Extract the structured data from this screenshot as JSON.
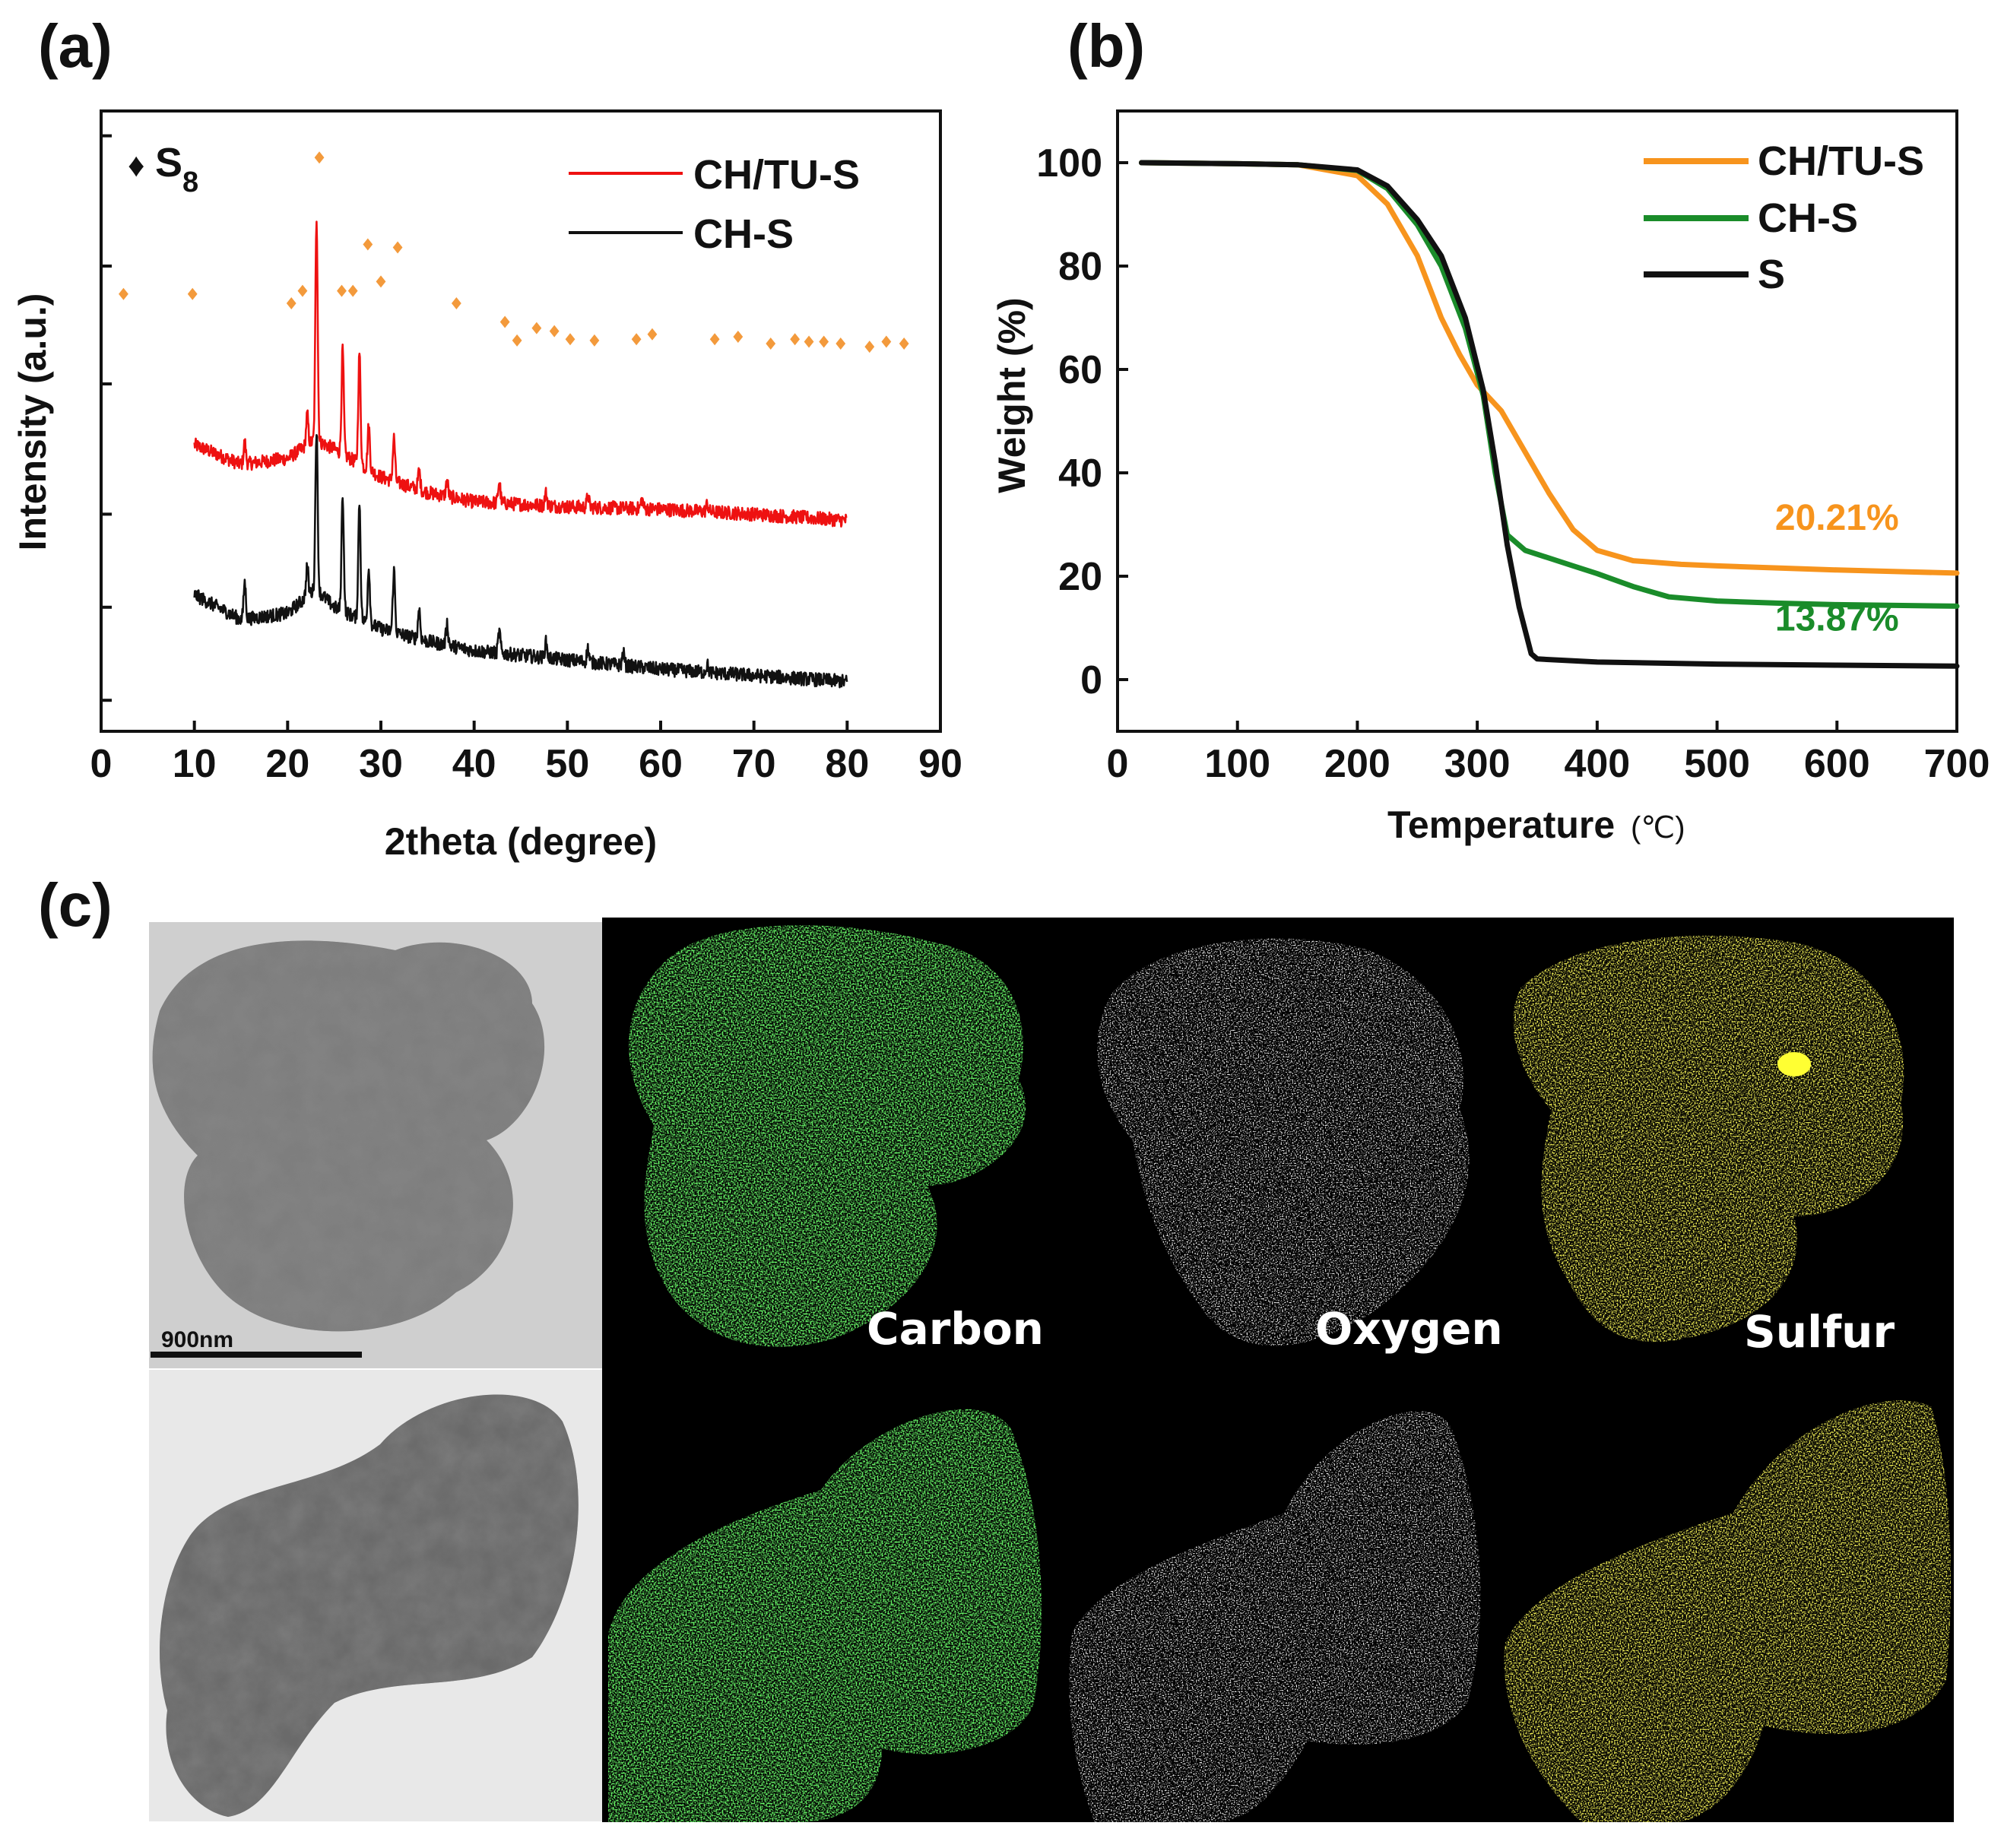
{
  "panels": {
    "a": "(a)",
    "b": "(b)",
    "c": "(c)"
  },
  "colors": {
    "ch_tu_s_xrd": "#ee1111",
    "ch_s_xrd": "#111111",
    "s8_marker": "#f39a3c",
    "ch_tu_s_tga": "#f7941d",
    "ch_s_tga": "#1a8c2a",
    "s_tga": "#111111",
    "carbon": "#22dd22",
    "oxygen": "#ffffff",
    "sulfur": "#f2ee1a"
  },
  "chart_data": [
    {
      "type": "line",
      "panel": "a",
      "xlabel": "2theta (degree)",
      "ylabel": "Intensity (a.u.)",
      "xlim": [
        0,
        90
      ],
      "x_ticks": [
        0,
        10,
        20,
        30,
        40,
        50,
        60,
        70,
        80,
        90
      ],
      "y_tick_labels": "none",
      "s8_legend": {
        "symbol": "♦",
        "label": "S",
        "subscript": "8"
      },
      "s8_reference_peaks": [
        {
          "x": 2.4,
          "y": 0.705
        },
        {
          "x": 9.8,
          "y": 0.705
        },
        {
          "x": 20.4,
          "y": 0.69
        },
        {
          "x": 21.6,
          "y": 0.71
        },
        {
          "x": 23.4,
          "y": 0.925
        },
        {
          "x": 25.8,
          "y": 0.71
        },
        {
          "x": 27.0,
          "y": 0.71
        },
        {
          "x": 28.6,
          "y": 0.785
        },
        {
          "x": 30.0,
          "y": 0.725
        },
        {
          "x": 31.8,
          "y": 0.78
        },
        {
          "x": 38.1,
          "y": 0.69
        },
        {
          "x": 43.3,
          "y": 0.66
        },
        {
          "x": 44.6,
          "y": 0.63
        },
        {
          "x": 46.7,
          "y": 0.65
        },
        {
          "x": 48.6,
          "y": 0.645
        },
        {
          "x": 50.3,
          "y": 0.632
        },
        {
          "x": 52.9,
          "y": 0.63
        },
        {
          "x": 57.4,
          "y": 0.632
        },
        {
          "x": 59.1,
          "y": 0.64
        },
        {
          "x": 65.8,
          "y": 0.632
        },
        {
          "x": 68.3,
          "y": 0.636
        },
        {
          "x": 71.8,
          "y": 0.625
        },
        {
          "x": 74.4,
          "y": 0.632
        },
        {
          "x": 75.9,
          "y": 0.628
        },
        {
          "x": 77.5,
          "y": 0.628
        },
        {
          "x": 79.3,
          "y": 0.625
        },
        {
          "x": 82.4,
          "y": 0.62
        },
        {
          "x": 84.2,
          "y": 0.628
        },
        {
          "x": 86.1,
          "y": 0.625
        }
      ],
      "series": [
        {
          "name": "CH/TU-S",
          "baseline": [
            [
              10,
              0.462
            ],
            [
              15,
              0.43
            ],
            [
              20,
              0.44
            ],
            [
              23,
              0.47
            ],
            [
              25,
              0.455
            ],
            [
              30,
              0.41
            ],
            [
              35,
              0.385
            ],
            [
              40,
              0.37
            ],
            [
              50,
              0.362
            ],
            [
              60,
              0.358
            ],
            [
              70,
              0.35
            ],
            [
              80,
              0.34
            ]
          ],
          "peaks": [
            [
              15.4,
              0.035
            ],
            [
              22.1,
              0.05
            ],
            [
              23.1,
              0.36
            ],
            [
              25.9,
              0.17
            ],
            [
              27.7,
              0.18
            ],
            [
              28.7,
              0.07
            ],
            [
              31.4,
              0.07
            ],
            [
              34.1,
              0.03
            ],
            [
              37.1,
              0.025
            ],
            [
              42.7,
              0.035
            ],
            [
              47.7,
              0.02
            ],
            [
              52.2,
              0.018
            ],
            [
              58.0,
              0.015
            ],
            [
              65.0,
              0.012
            ]
          ]
        },
        {
          "name": "CH-S",
          "baseline": [
            [
              10,
              0.22
            ],
            [
              15,
              0.18
            ],
            [
              20,
              0.19
            ],
            [
              23,
              0.23
            ],
            [
              25,
              0.2
            ],
            [
              30,
              0.165
            ],
            [
              35,
              0.145
            ],
            [
              40,
              0.13
            ],
            [
              50,
              0.115
            ],
            [
              60,
              0.1
            ],
            [
              70,
              0.09
            ],
            [
              80,
              0.08
            ]
          ],
          "peaks": [
            [
              15.4,
              0.06
            ],
            [
              22.1,
              0.05
            ],
            [
              23.1,
              0.26
            ],
            [
              25.9,
              0.19
            ],
            [
              27.7,
              0.19
            ],
            [
              28.7,
              0.09
            ],
            [
              31.4,
              0.1
            ],
            [
              34.1,
              0.05
            ],
            [
              37.1,
              0.035
            ],
            [
              42.7,
              0.035
            ],
            [
              47.7,
              0.025
            ],
            [
              52.2,
              0.022
            ],
            [
              56.0,
              0.02
            ],
            [
              65.0,
              0.012
            ]
          ]
        }
      ]
    },
    {
      "type": "line",
      "panel": "b",
      "xlabel": "Temperature",
      "xlabel_unit": "(℃)",
      "ylabel": "Weight (%)",
      "xlim": [
        0,
        700
      ],
      "ylim": [
        -10,
        110
      ],
      "x_ticks": [
        0,
        100,
        200,
        300,
        400,
        500,
        600,
        700
      ],
      "y_ticks": [
        0,
        20,
        40,
        60,
        80,
        100
      ],
      "series": [
        {
          "name": "CH/TU-S",
          "x": [
            20,
            100,
            150,
            200,
            225,
            250,
            270,
            285,
            300,
            320,
            340,
            360,
            380,
            400,
            430,
            470,
            500,
            550,
            600,
            650,
            700
          ],
          "y": [
            100,
            99.8,
            99.6,
            97.5,
            92,
            82,
            70,
            63,
            57,
            52,
            44,
            36,
            29,
            25,
            23,
            22.3,
            22,
            21.6,
            21.2,
            20.9,
            20.6
          ]
        },
        {
          "name": "CH-S",
          "x": [
            20,
            100,
            150,
            200,
            225,
            250,
            270,
            290,
            305,
            315,
            325,
            340,
            360,
            380,
            400,
            430,
            460,
            500,
            550,
            600,
            700
          ],
          "y": [
            100,
            99.8,
            99.6,
            98.5,
            95,
            88,
            80,
            68,
            55,
            40,
            28,
            25,
            23.5,
            22,
            20.5,
            18,
            16,
            15.2,
            14.8,
            14.5,
            14.2
          ]
        },
        {
          "name": "S",
          "x": [
            20,
            100,
            150,
            200,
            225,
            250,
            270,
            290,
            305,
            315,
            325,
            335,
            345,
            350,
            400,
            500,
            600,
            700
          ],
          "y": [
            100,
            99.8,
            99.6,
            98.6,
            95.5,
            89,
            82,
            70,
            56,
            42,
            26,
            14,
            5,
            4,
            3.4,
            3,
            2.8,
            2.6
          ]
        }
      ],
      "annotations": [
        {
          "text": "20.21%",
          "series": "CH/TU-S",
          "x": 600,
          "y": 29
        },
        {
          "text": "13.87%",
          "series": "CH-S",
          "x": 600,
          "y": 9.5
        }
      ]
    }
  ],
  "panel_c": {
    "scale_bar": "900nm",
    "map_labels": [
      "Carbon",
      "Oxygen",
      "Sulfur"
    ]
  }
}
